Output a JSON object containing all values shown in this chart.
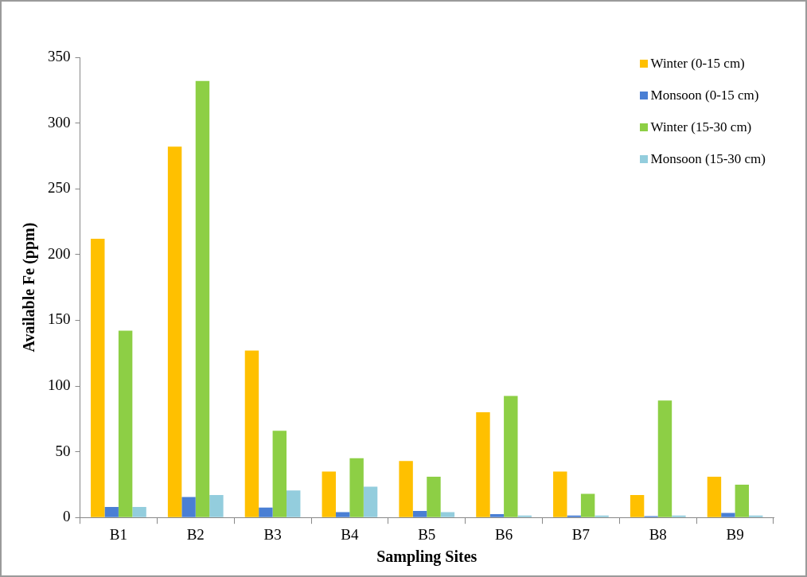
{
  "chart_data": {
    "type": "bar",
    "xlabel": "Sampling Sites",
    "ylabel": "Available Fe (ppm)",
    "categories": [
      "B1",
      "B2",
      "B3",
      "B4",
      "B5",
      "B6",
      "B7",
      "B8",
      "B9"
    ],
    "series": [
      {
        "name": "Winter (0-15 cm)",
        "color": "#ffc000",
        "values": [
          212,
          282,
          127,
          35,
          43,
          80,
          35,
          17,
          31
        ]
      },
      {
        "name": "Monsoon (0-15 cm)",
        "color": "#4a7fd4",
        "values": [
          8,
          15.5,
          7.5,
          4,
          5,
          2.5,
          1.5,
          1,
          3.5
        ]
      },
      {
        "name": "Winter (15-30 cm)",
        "color": "#8dcf45",
        "values": [
          142,
          332,
          66,
          45,
          31,
          92.5,
          18,
          89,
          25
        ]
      },
      {
        "name": "Monsoon (15-30 cm)",
        "color": "#93cddd",
        "values": [
          8,
          17,
          20.5,
          23.5,
          4,
          1.5,
          1.5,
          1.5,
          1.5
        ]
      }
    ],
    "ylim": [
      0,
      350
    ],
    "yticks": [
      0,
      50,
      100,
      150,
      200,
      250,
      300,
      350
    ],
    "grid": false,
    "legend": "top right"
  }
}
